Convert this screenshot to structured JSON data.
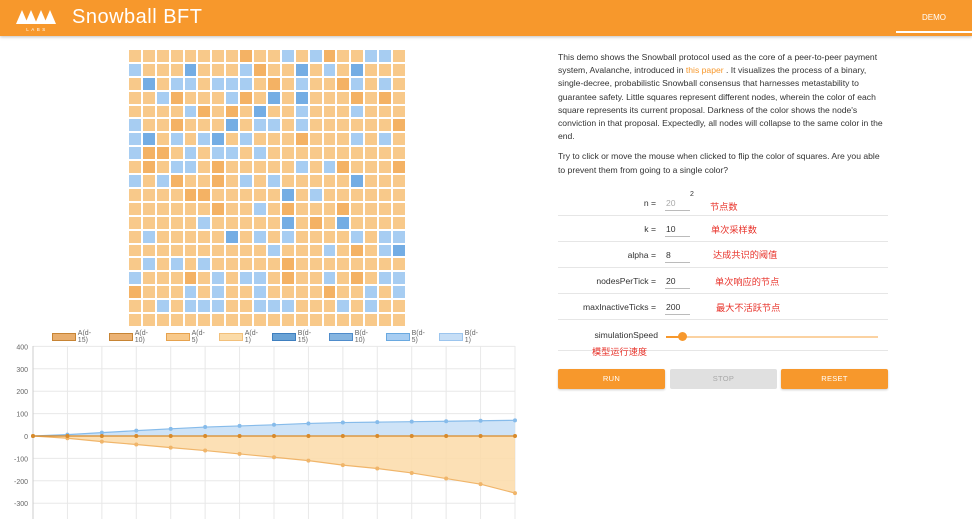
{
  "header": {
    "title": "Snowball BFT",
    "logo_text": "LABS",
    "tab_demo": "DEMO"
  },
  "colors": {
    "accent": "#f7982c",
    "a_levels": [
      "#e6a24e",
      "#f0a95c",
      "#f8c98a",
      "#fbdba8"
    ],
    "b_levels": [
      "#6aa9e0",
      "#86bbea",
      "#a7cdf2",
      "#c6def6"
    ]
  },
  "grid": {
    "rows": [
      "ccccccccaccdcdaccddc",
      "dcccbcccdaccbcdcbccc",
      "cbcddcdddcacdccadcdc",
      "ccdacccdacbcbcccacac",
      "ccccdacacbccdcccdccc",
      "dccacccbcddcdcccccca",
      "dbcdcdbcdcccacccdcdc",
      "daacdcddcdcccccccccc",
      "cacddcacccccdcdaccca",
      "dcdaccacdcdcccccbccc",
      "ccccaacccccbcdcccccc",
      "ccccccaccdcacccacccc",
      "cccccdcccccbcacbcccc",
      "cdcccccbcdcdccccdcdd",
      "ccccccccccdcccdcacdb",
      "cdcdcdcccccacccccccc",
      "dcccacdcddcaccdcacdd",
      "acccdcdccdccccaccdcd",
      "ccdcdddccdddcccdcdcc",
      "cccccccccccccccccccc"
    ]
  },
  "legend": [
    "A(d-15)",
    "A(d-10)",
    "A(d-5)",
    "A(d-1)",
    "B(d-15)",
    "B(d-10)",
    "B(d-5)",
    "B(d-1)"
  ],
  "chart_data": {
    "type": "area",
    "y_ticks": [
      "400",
      "300",
      "200",
      "100",
      "0",
      "-100",
      "-200",
      "-300"
    ],
    "ylim": [
      -370,
      400
    ],
    "x": [
      0,
      1,
      2,
      3,
      4,
      5,
      6,
      7,
      8,
      9,
      10,
      11,
      12,
      13,
      14
    ],
    "series": [
      {
        "name": "B(d-1)",
        "values": [
          0,
          6,
          15,
          24,
          32,
          40,
          45,
          50,
          56,
          60,
          62,
          64,
          66,
          68,
          70
        ]
      },
      {
        "name": "A(d-1)",
        "values": [
          0,
          -10,
          -25,
          -38,
          -52,
          -65,
          -80,
          -95,
          -110,
          -130,
          -145,
          -165,
          -190,
          -215,
          -255
        ]
      },
      {
        "name": "A(d-15)",
        "values": [
          0,
          0,
          0,
          0,
          0,
          0,
          0,
          0,
          0,
          0,
          0,
          0,
          0,
          0,
          0
        ]
      }
    ],
    "grid": true
  },
  "description": {
    "p1_before": "This demo shows the Snowball protocol used as the core of a peer-to-peer payment system, Avalanche, introduced in ",
    "p1_link": "this paper",
    "p1_after": " . It visualizes the process of a binary, single-decree, probabilistic Snowball consensus that harnesses metastability to guarantee safety. Little squares represent different nodes, wherein the color of each square represents its current proposal. Darkness of the color shows the node's conviction in that proposal. Expectedly, all nodes will collapse to the same color in the end.",
    "p2": "Try to click or move the mouse when clicked to flip the color of squares. Are you able to prevent them from going to a single color?"
  },
  "params": {
    "n": {
      "label": "n =",
      "value": "20",
      "sup": "2",
      "note": "节点数"
    },
    "k": {
      "label": "k =",
      "value": "10",
      "note": "单次采样数"
    },
    "alpha": {
      "label": "alpha =",
      "value": "8",
      "note": "达成共识的阈值"
    },
    "nodesPerTick": {
      "label": "nodesPerTick =",
      "value": "20",
      "note": "单次响应的节点"
    },
    "maxInactiveTicks": {
      "label": "maxInactiveTicks =",
      "value": "200",
      "note": "最大不活跃节点"
    },
    "simulationSpeed": {
      "label": "simulationSpeed",
      "note": "模型运行速度",
      "value_fraction": 0.08
    }
  },
  "buttons": {
    "run": "RUN",
    "stop": "STOP",
    "reset": "RESET"
  }
}
